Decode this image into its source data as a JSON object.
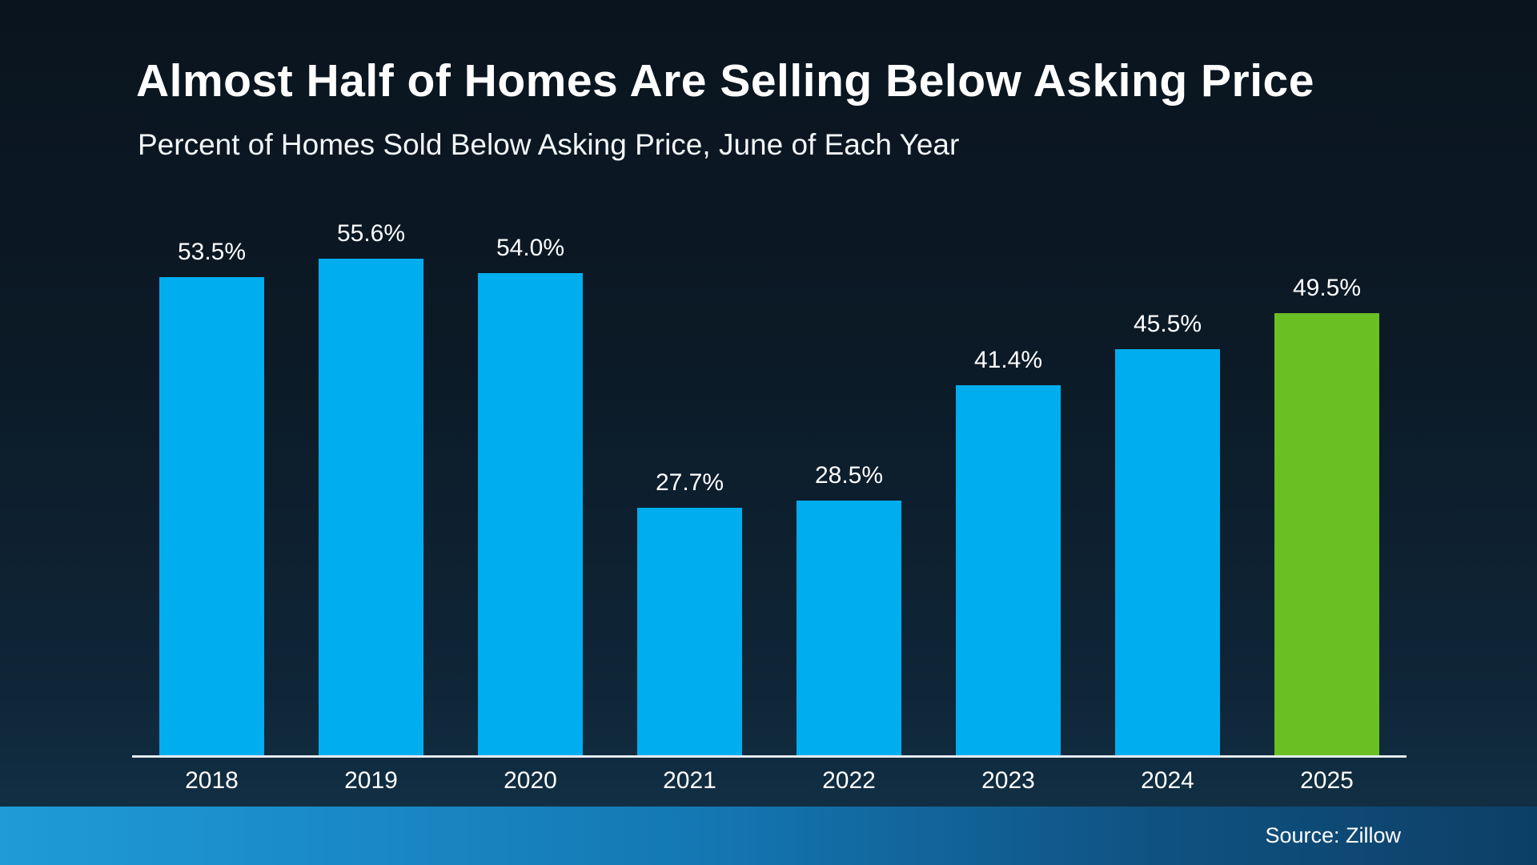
{
  "chart_data": {
    "type": "bar",
    "title": "Almost Half of Homes Are Selling Below Asking Price",
    "subtitle": "Percent of Homes Sold Below Asking Price, June of Each Year",
    "categories": [
      "2018",
      "2019",
      "2020",
      "2021",
      "2022",
      "2023",
      "2024",
      "2025"
    ],
    "values": [
      53.5,
      55.6,
      54.0,
      27.7,
      28.5,
      41.4,
      45.5,
      49.5
    ],
    "value_labels": [
      "53.5%",
      "55.6%",
      "54.0%",
      "27.7%",
      "28.5%",
      "41.4%",
      "45.5%",
      "49.5%"
    ],
    "bar_color": "#00AEEF",
    "highlight_index": 7,
    "highlight_color": "#6ABF23",
    "ylim": [
      0,
      60
    ],
    "grid": false,
    "legend": false,
    "source": "Source: Zillow",
    "background_top": "#0a141e",
    "background_bottom": "#123349"
  }
}
